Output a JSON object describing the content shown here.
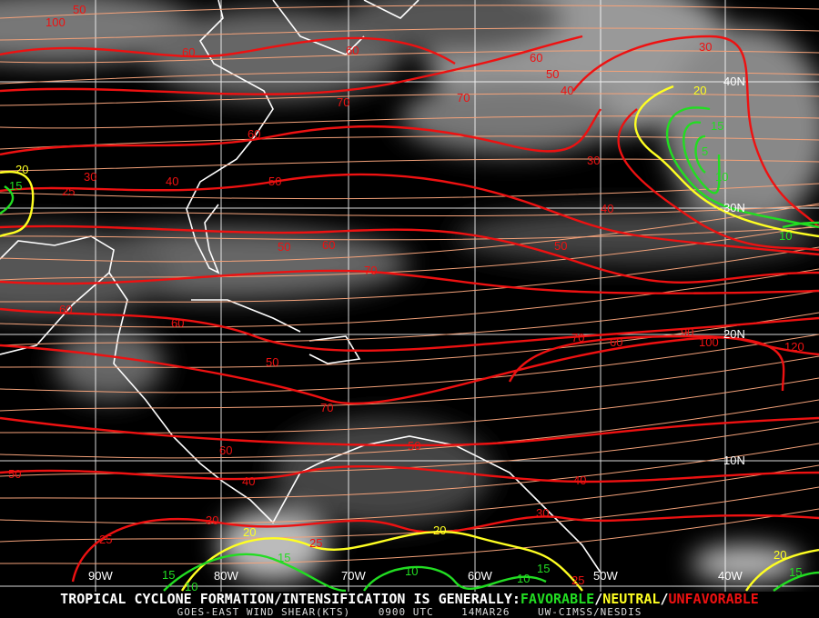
{
  "colors": {
    "favorable": "#22dd22",
    "neutral": "#ffff22",
    "unfavorable": "#ee1111",
    "streamline": "#f4a27a",
    "grid": "#ffffff",
    "coastline": "#ffffff"
  },
  "grid": {
    "longitudes": [
      "90W",
      "80W",
      "70W",
      "60W",
      "50W",
      "40W"
    ],
    "latitudes": [
      "40N",
      "30N",
      "20N",
      "10N"
    ]
  },
  "contour_labels": [
    "100",
    "50",
    "60",
    "60",
    "70",
    "70",
    "60",
    "50",
    "40",
    "30",
    "40",
    "50",
    "60",
    "20",
    "15",
    "25",
    "30",
    "40",
    "50",
    "60",
    "50",
    "70",
    "60",
    "60",
    "50",
    "70",
    "70",
    "60",
    "90",
    "100",
    "120",
    "60",
    "50",
    "40",
    "50",
    "40",
    "30",
    "30",
    "20",
    "25",
    "25",
    "20",
    "15",
    "10",
    "10",
    "15",
    "25",
    "10",
    "15",
    "20",
    "15",
    "20",
    "15",
    "5",
    "10",
    "10",
    "30"
  ],
  "footer": {
    "headline_prefix": "TROPICAL CYCLONE FORMATION/INTENSIFICATION IS GENERALLY:",
    "favorable": "FAVORABLE",
    "sep1": "/",
    "neutral": "NEUTRAL",
    "sep2": "/",
    "unfavorable": "UNFAVORABLE",
    "satellite": "GOES-EAST WIND SHEAR(KTS)",
    "time": "0900 UTC",
    "date": "14MAR26",
    "source": "UW-CIMSS/NESDIS"
  }
}
